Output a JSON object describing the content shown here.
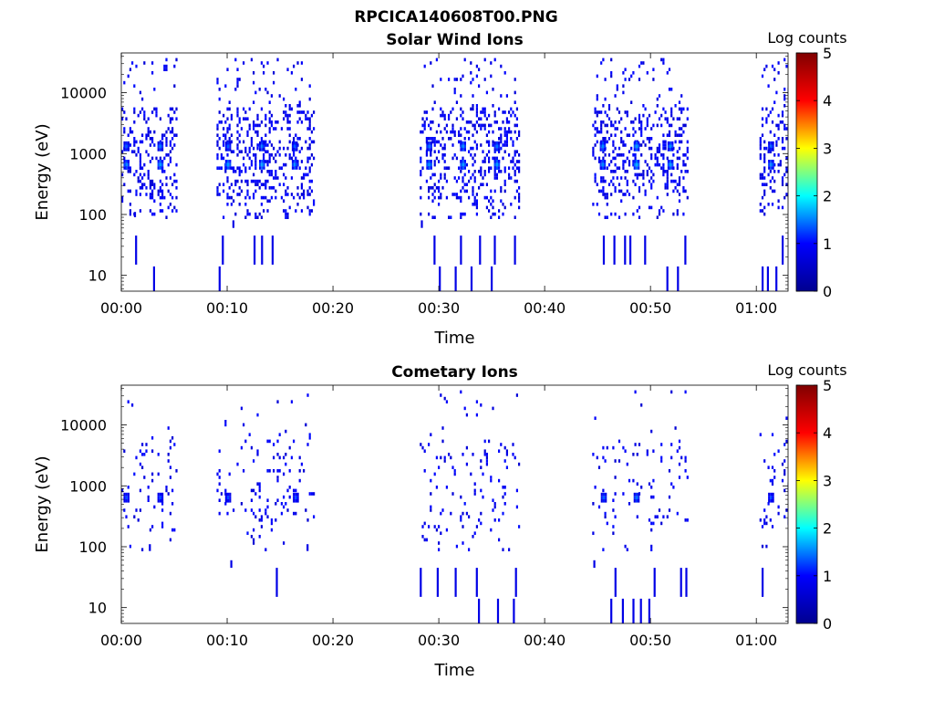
{
  "figure": {
    "title": "RPCICA140608T00.PNG"
  },
  "colorbar": {
    "label": "Log counts",
    "min": 0,
    "max": 5,
    "ticks": [
      "0",
      "1",
      "2",
      "3",
      "4",
      "5"
    ],
    "colormap": "jet",
    "stops": [
      "#00008f",
      "#0000ff",
      "#00ffff",
      "#ffff00",
      "#ff0000",
      "#800000"
    ]
  },
  "chart_data": [
    {
      "type": "heatmap",
      "title": "Solar Wind Ions",
      "xlabel": "Time",
      "ylabel": "Energy (eV)",
      "y_scale": "log",
      "x_ticks": [
        "00:00",
        "00:10",
        "00:20",
        "00:30",
        "00:40",
        "00:50",
        "01:00"
      ],
      "y_ticks": [
        "10",
        "100",
        "1000",
        "10000"
      ],
      "xlim_minutes": [
        0,
        63
      ],
      "ylim": [
        5.5,
        45000
      ],
      "active_intervals_minutes": [
        [
          0,
          5.3
        ],
        [
          9,
          18.2
        ],
        [
          28.2,
          37.5
        ],
        [
          44.5,
          53.6
        ],
        [
          60.3,
          63
        ]
      ],
      "peaks": [
        {
          "t": 0.4,
          "e": 700,
          "v": 1.3
        },
        {
          "t": 0.4,
          "e": 1400,
          "v": 1.1
        },
        {
          "t": 3.6,
          "e": 700,
          "v": 1.4
        },
        {
          "t": 3.6,
          "e": 1400,
          "v": 1.2
        },
        {
          "t": 10.0,
          "e": 700,
          "v": 1.4
        },
        {
          "t": 10.0,
          "e": 1400,
          "v": 1.1
        },
        {
          "t": 13.2,
          "e": 700,
          "v": 1.4
        },
        {
          "t": 13.2,
          "e": 1400,
          "v": 1.2
        },
        {
          "t": 16.3,
          "e": 700,
          "v": 1.3
        },
        {
          "t": 16.3,
          "e": 1400,
          "v": 1.1
        },
        {
          "t": 29.0,
          "e": 700,
          "v": 1.4
        },
        {
          "t": 29.0,
          "e": 1400,
          "v": 1.2
        },
        {
          "t": 32.2,
          "e": 700,
          "v": 1.4
        },
        {
          "t": 32.2,
          "e": 1400,
          "v": 1.3
        },
        {
          "t": 35.4,
          "e": 700,
          "v": 1.4
        },
        {
          "t": 35.4,
          "e": 1400,
          "v": 1.2
        },
        {
          "t": 45.4,
          "e": 700,
          "v": 1.3
        },
        {
          "t": 45.4,
          "e": 1400,
          "v": 1.3
        },
        {
          "t": 48.6,
          "e": 700,
          "v": 1.5
        },
        {
          "t": 48.6,
          "e": 1400,
          "v": 1.4
        },
        {
          "t": 51.8,
          "e": 700,
          "v": 1.4
        },
        {
          "t": 51.8,
          "e": 1400,
          "v": 1.3
        },
        {
          "t": 61.3,
          "e": 700,
          "v": 1.3
        },
        {
          "t": 61.3,
          "e": 1400,
          "v": 1.1
        }
      ],
      "low_energy_streaks": [
        {
          "t": 1.2,
          "e0": 90,
          "e1": 110
        },
        {
          "t": 1.3,
          "e0": 15,
          "e1": 45
        },
        {
          "t": 3.0,
          "e0": 5.5,
          "e1": 14
        },
        {
          "t": 9.2,
          "e0": 5.5,
          "e1": 14
        },
        {
          "t": 9.5,
          "e0": 15,
          "e1": 45
        },
        {
          "t": 10.5,
          "e0": 60,
          "e1": 80
        },
        {
          "t": 12.5,
          "e0": 15,
          "e1": 45
        },
        {
          "t": 13.2,
          "e0": 15,
          "e1": 45
        },
        {
          "t": 14.2,
          "e0": 15,
          "e1": 45
        },
        {
          "t": 28.3,
          "e0": 60,
          "e1": 80
        },
        {
          "t": 29.5,
          "e0": 15,
          "e1": 45
        },
        {
          "t": 30.0,
          "e0": 5.5,
          "e1": 14
        },
        {
          "t": 31.5,
          "e0": 5.5,
          "e1": 14
        },
        {
          "t": 32.0,
          "e0": 15,
          "e1": 45
        },
        {
          "t": 33.0,
          "e0": 5.5,
          "e1": 14
        },
        {
          "t": 33.8,
          "e0": 15,
          "e1": 45
        },
        {
          "t": 34.9,
          "e0": 5.5,
          "e1": 14
        },
        {
          "t": 35.2,
          "e0": 15,
          "e1": 45
        },
        {
          "t": 37.1,
          "e0": 15,
          "e1": 45
        },
        {
          "t": 45.5,
          "e0": 15,
          "e1": 45
        },
        {
          "t": 46.5,
          "e0": 15,
          "e1": 45
        },
        {
          "t": 47.5,
          "e0": 15,
          "e1": 45
        },
        {
          "t": 48.0,
          "e0": 15,
          "e1": 45
        },
        {
          "t": 49.4,
          "e0": 15,
          "e1": 45
        },
        {
          "t": 51.5,
          "e0": 5.5,
          "e1": 14
        },
        {
          "t": 52.5,
          "e0": 5.5,
          "e1": 14
        },
        {
          "t": 53.2,
          "e0": 15,
          "e1": 45
        },
        {
          "t": 60.5,
          "e0": 5.5,
          "e1": 14
        },
        {
          "t": 61.0,
          "e0": 5.5,
          "e1": 14
        },
        {
          "t": 61.8,
          "e0": 5.5,
          "e1": 14
        },
        {
          "t": 62.4,
          "e0": 15,
          "e1": 45
        }
      ],
      "density": 0.45
    },
    {
      "type": "heatmap",
      "title": "Cometary Ions",
      "xlabel": "Time",
      "ylabel": "Energy (eV)",
      "y_scale": "log",
      "x_ticks": [
        "00:00",
        "00:10",
        "00:20",
        "00:30",
        "00:40",
        "00:50",
        "01:00"
      ],
      "y_ticks": [
        "10",
        "100",
        "1000",
        "10000"
      ],
      "xlim_minutes": [
        0,
        63
      ],
      "ylim": [
        5.5,
        45000
      ],
      "active_intervals_minutes": [
        [
          0,
          5.3
        ],
        [
          9,
          18.2
        ],
        [
          28.2,
          37.5
        ],
        [
          44.5,
          53.6
        ],
        [
          60.3,
          63
        ]
      ],
      "peaks": [
        {
          "t": 0.4,
          "e": 680,
          "v": 1.0
        },
        {
          "t": 3.6,
          "e": 680,
          "v": 1.0
        },
        {
          "t": 10.0,
          "e": 680,
          "v": 1.0
        },
        {
          "t": 16.4,
          "e": 680,
          "v": 1.0
        },
        {
          "t": 45.5,
          "e": 680,
          "v": 1.1
        },
        {
          "t": 48.6,
          "e": 680,
          "v": 1.2
        },
        {
          "t": 61.3,
          "e": 680,
          "v": 1.0
        }
      ],
      "low_energy_streaks": [
        {
          "t": 2.6,
          "e0": 85,
          "e1": 110
        },
        {
          "t": 10.3,
          "e0": 45,
          "e1": 60
        },
        {
          "t": 14.6,
          "e0": 15,
          "e1": 45
        },
        {
          "t": 17.5,
          "e0": 85,
          "e1": 110
        },
        {
          "t": 28.2,
          "e0": 15,
          "e1": 45
        },
        {
          "t": 29.8,
          "e0": 15,
          "e1": 45
        },
        {
          "t": 31.5,
          "e0": 15,
          "e1": 45
        },
        {
          "t": 33.7,
          "e0": 5.5,
          "e1": 14
        },
        {
          "t": 33.5,
          "e0": 15,
          "e1": 45
        },
        {
          "t": 35.5,
          "e0": 5.5,
          "e1": 14
        },
        {
          "t": 37.0,
          "e0": 5.5,
          "e1": 14
        },
        {
          "t": 37.2,
          "e0": 15,
          "e1": 45
        },
        {
          "t": 44.6,
          "e0": 45,
          "e1": 60
        },
        {
          "t": 46.2,
          "e0": 5.5,
          "e1": 14
        },
        {
          "t": 46.6,
          "e0": 15,
          "e1": 45
        },
        {
          "t": 47.3,
          "e0": 5.5,
          "e1": 14
        },
        {
          "t": 48.3,
          "e0": 5.5,
          "e1": 14
        },
        {
          "t": 49.0,
          "e0": 5.5,
          "e1": 14
        },
        {
          "t": 49.8,
          "e0": 5.5,
          "e1": 14
        },
        {
          "t": 50.3,
          "e0": 15,
          "e1": 45
        },
        {
          "t": 52.8,
          "e0": 15,
          "e1": 45
        },
        {
          "t": 53.3,
          "e0": 15,
          "e1": 45
        },
        {
          "t": 60.5,
          "e0": 15,
          "e1": 45
        }
      ],
      "density": 0.12
    }
  ]
}
